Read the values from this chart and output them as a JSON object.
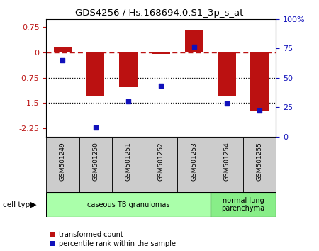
{
  "title": "GDS4256 / Hs.168694.0.S1_3p_s_at",
  "samples": [
    "GSM501249",
    "GSM501250",
    "GSM501251",
    "GSM501252",
    "GSM501253",
    "GSM501254",
    "GSM501255"
  ],
  "transformed_counts": [
    0.18,
    -1.28,
    -1.0,
    -0.04,
    0.65,
    -1.3,
    -1.72
  ],
  "percentile_ranks": [
    65,
    8,
    30,
    43,
    76,
    28,
    22
  ],
  "ylim_left": [
    -2.5,
    1.0
  ],
  "ylim_right": [
    0,
    100
  ],
  "yticks_left": [
    0.75,
    0,
    -0.75,
    -1.5,
    -2.25
  ],
  "yticks_right": [
    100,
    75,
    50,
    25,
    0
  ],
  "hline_y": 0,
  "dotted_lines": [
    -0.75,
    -1.5
  ],
  "bar_color": "#bb1111",
  "dot_color": "#1111bb",
  "bar_width": 0.55,
  "cell_types": [
    {
      "label": "caseous TB granulomas",
      "start": 0,
      "end": 5,
      "color": "#aaffaa"
    },
    {
      "label": "normal lung\nparenchyma",
      "start": 5,
      "end": 7,
      "color": "#88ee88"
    }
  ],
  "legend_bar_label": "transformed count",
  "legend_dot_label": "percentile rank within the sample",
  "cell_type_label": "cell type",
  "sample_box_color": "#cccccc",
  "background_color": "#ffffff"
}
